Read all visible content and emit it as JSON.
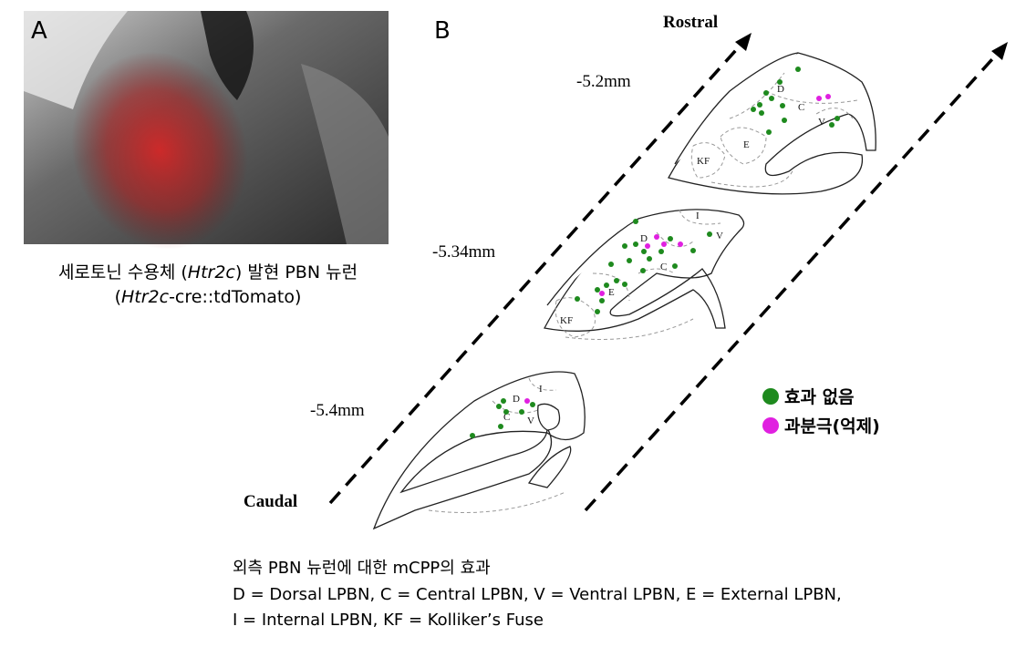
{
  "panel_a": {
    "label": "A",
    "caption_line1": [
      "세로토닌 수용체 (",
      "Htr2c",
      ") 발현 PBN 뉴런"
    ],
    "caption_line2": [
      "(",
      "Htr2c",
      "-cre::tdTomato)"
    ]
  },
  "panel_b": {
    "label": "B",
    "rostral": "Rostral",
    "caudal": "Caudal",
    "sections": [
      {
        "level": "-5.2mm",
        "regions": [
          "D",
          "C",
          "V",
          "E",
          "KF"
        ]
      },
      {
        "level": "-5.34mm",
        "regions": [
          "I",
          "D",
          "V",
          "C",
          "E",
          "KF"
        ]
      },
      {
        "level": "-5.4mm",
        "regions": [
          "D",
          "I",
          "C",
          "V"
        ]
      }
    ],
    "legend": [
      "효과 없음",
      "과분극(억제)"
    ],
    "caption": [
      "외측 PBN 뉴런에 대한 mCPP의 효과",
      "D = Dorsal LPBN, C = Central LPBN, V = Ventral LPBN, E = External LPBN,",
      "I = Internal LPBN, KF = Kolliker’s Fuse"
    ]
  }
}
